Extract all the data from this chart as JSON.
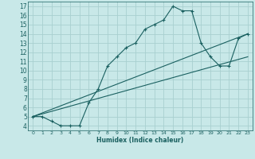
{
  "xlabel": "Humidex (Indice chaleur)",
  "bg_color": "#c8e8e8",
  "grid_color": "#a8d0d0",
  "line_color": "#1a6060",
  "curve1_x": [
    0,
    1,
    2,
    3,
    4,
    5,
    6,
    7,
    8,
    9,
    10,
    11,
    12,
    13,
    14,
    15,
    16,
    17,
    18,
    19,
    20,
    21,
    22,
    23
  ],
  "curve1_y": [
    5,
    5,
    4.5,
    4,
    4,
    4,
    6.5,
    8,
    10.5,
    11.5,
    12.5,
    13,
    14.5,
    15,
    15.5,
    17,
    16.5,
    16.5,
    13,
    11.5,
    10.5,
    10.5,
    13.5,
    14
  ],
  "curve2_x": [
    0,
    23
  ],
  "curve2_y": [
    5,
    14
  ],
  "curve3_x": [
    0,
    23
  ],
  "curve3_y": [
    5,
    11.5
  ],
  "xlim": [
    -0.5,
    23.5
  ],
  "ylim": [
    3.5,
    17.5
  ],
  "yticks": [
    4,
    5,
    6,
    7,
    8,
    9,
    10,
    11,
    12,
    13,
    14,
    15,
    16,
    17
  ],
  "xticks": [
    0,
    1,
    2,
    3,
    4,
    5,
    6,
    7,
    8,
    9,
    10,
    11,
    12,
    13,
    14,
    15,
    16,
    17,
    18,
    19,
    20,
    21,
    22,
    23
  ]
}
